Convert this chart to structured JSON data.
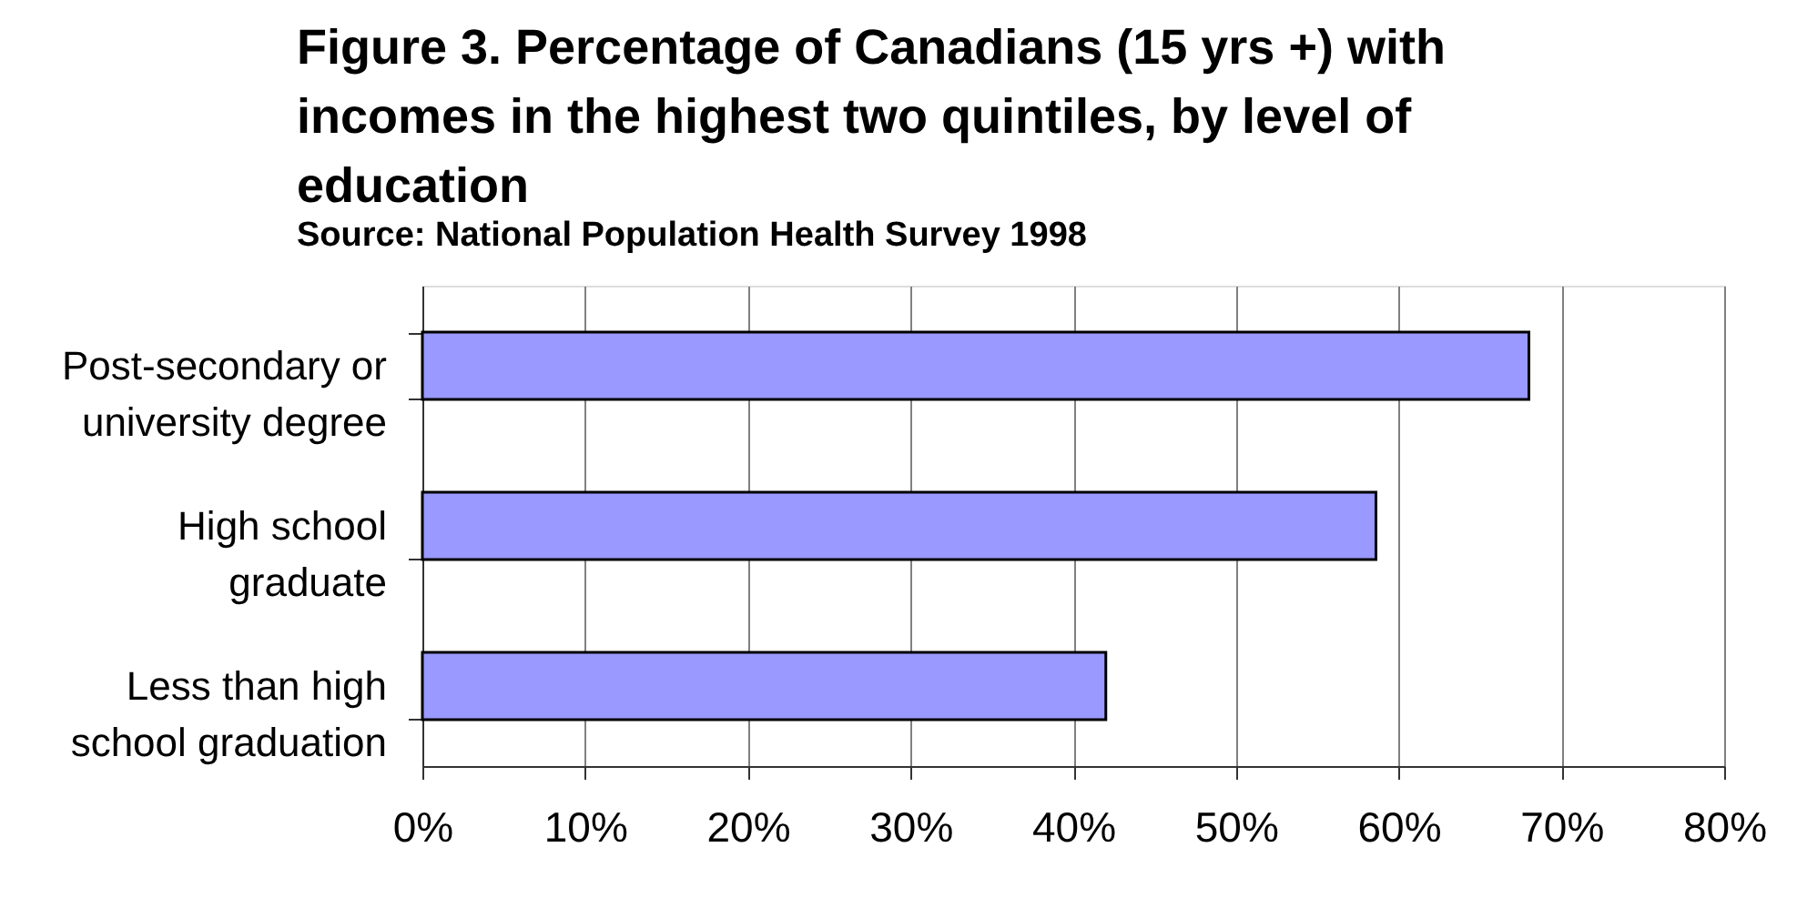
{
  "chart_data": {
    "type": "bar",
    "orientation": "horizontal",
    "title": "Figure 3. Percentage of Canadians (15 yrs +) with incomes in the highest two quintiles, by level of education",
    "subtitle": "Source: National Population Health Survey 1998",
    "categories": [
      "Post-secondary or university degree",
      "High school graduate",
      "Less than high school graduation"
    ],
    "values": [
      68,
      58.6,
      42
    ],
    "color": "#9999ff",
    "xlim": [
      0,
      80
    ],
    "xticks": [
      {
        "value": 0,
        "label": "0%"
      },
      {
        "value": 10,
        "label": "10%"
      },
      {
        "value": 20,
        "label": "20%"
      },
      {
        "value": 30,
        "label": "30%"
      },
      {
        "value": 40,
        "label": "40%"
      },
      {
        "value": 50,
        "label": "50%"
      },
      {
        "value": 60,
        "label": "60%"
      },
      {
        "value": 70,
        "label": "70%"
      },
      {
        "value": 80,
        "label": "80%"
      }
    ],
    "grid": "x"
  }
}
